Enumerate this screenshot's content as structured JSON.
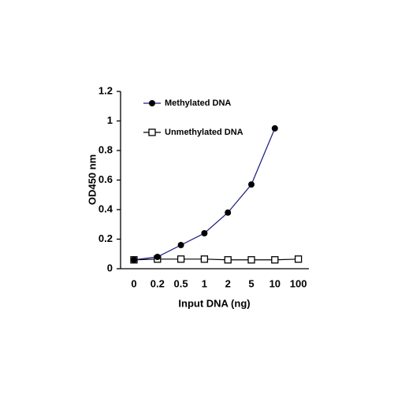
{
  "chart_data": {
    "type": "line",
    "x_label": "Input DNA (ng)",
    "y_label": "OD450 nm",
    "categories": [
      "0",
      "0.2",
      "0.5",
      "1",
      "2",
      "5",
      "10",
      "100"
    ],
    "series": [
      {
        "name": "Methylated DNA",
        "color": "#1a1a80",
        "marker": "circle",
        "marker_color": "#000000",
        "values": [
          0.06,
          0.08,
          0.16,
          0.24,
          0.38,
          0.57,
          0.95,
          null
        ]
      },
      {
        "name": "Unmethylated DNA",
        "color": "#000000",
        "marker": "square",
        "marker_color": "#000000",
        "values": [
          0.06,
          0.065,
          0.065,
          0.065,
          0.06,
          0.06,
          0.06,
          0.065
        ]
      }
    ],
    "ylim": [
      0,
      1.2
    ],
    "yticks": [
      0,
      0.2,
      0.4,
      0.6,
      0.8,
      1,
      1.2
    ],
    "grid": false,
    "legend": "upper left"
  }
}
